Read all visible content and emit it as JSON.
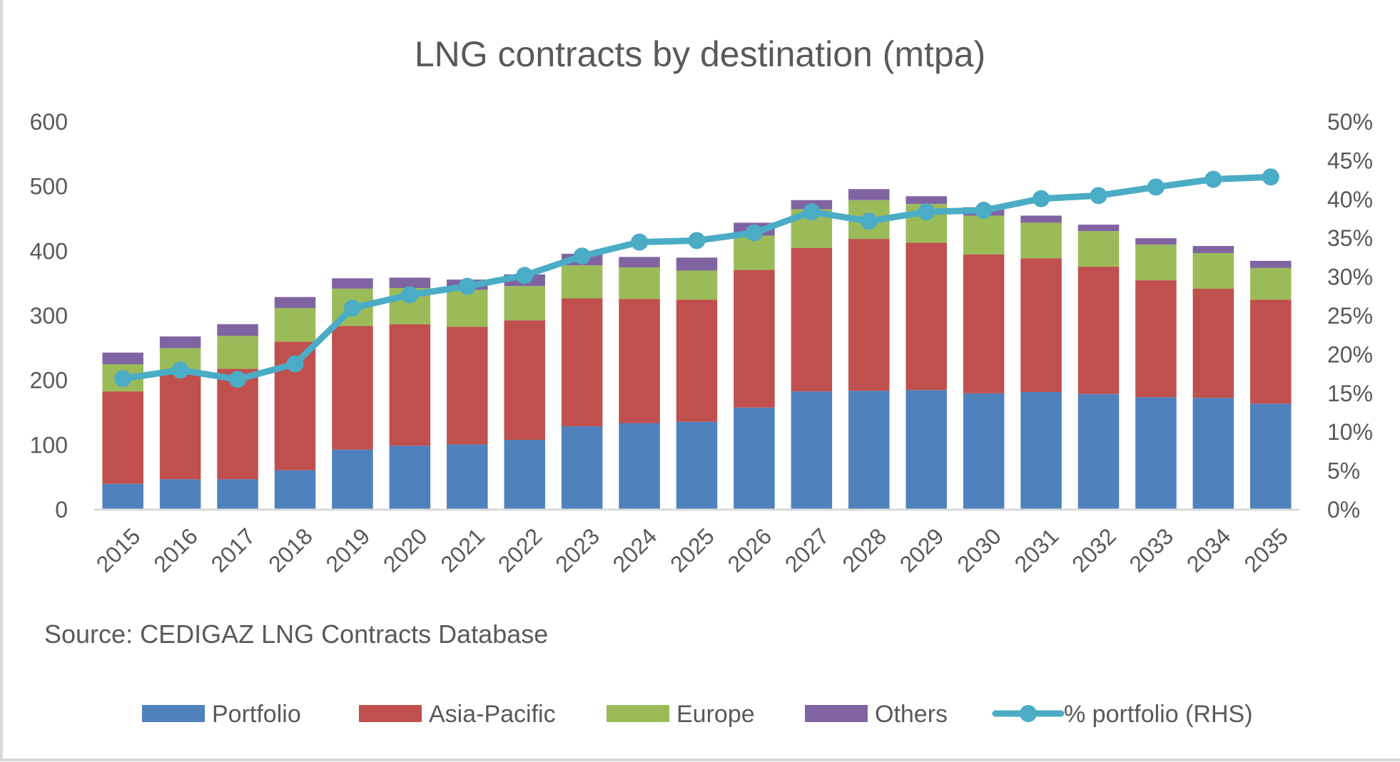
{
  "chart_data": {
    "type": "bar",
    "stacked": true,
    "title": "LNG contracts by destination (mtpa)",
    "source_note": "Source: CEDIGAZ LNG Contracts Database",
    "xlabel": "",
    "ylabel": "",
    "ylabel_right": "",
    "ylim": [
      0,
      600
    ],
    "yticks": [
      "0",
      "100",
      "200",
      "300",
      "400",
      "500",
      "600"
    ],
    "ylim_right": [
      0,
      50
    ],
    "yticks_right": [
      "0%",
      "5%",
      "10%",
      "15%",
      "20%",
      "25%",
      "30%",
      "35%",
      "40%",
      "45%",
      "50%"
    ],
    "grid": false,
    "legend_position": "bottom",
    "categories": [
      "2015",
      "2016",
      "2017",
      "2018",
      "2019",
      "2020",
      "2021",
      "2022",
      "2023",
      "2024",
      "2025",
      "2026",
      "2027",
      "2028",
      "2029",
      "2030",
      "2031",
      "2032",
      "2033",
      "2034",
      "2035"
    ],
    "series": [
      {
        "name": "Portfolio",
        "type": "bar",
        "axis": "left",
        "color": "#4f81bd",
        "values": [
          40,
          47,
          47,
          61,
          93,
          99,
          101,
          108,
          129,
          134,
          136,
          158,
          183,
          184,
          185,
          180,
          182,
          179,
          174,
          173,
          164
        ]
      },
      {
        "name": "Asia-Pacific",
        "type": "bar",
        "axis": "left",
        "color": "#c0504d",
        "values": [
          143,
          163,
          171,
          199,
          191,
          188,
          182,
          185,
          198,
          192,
          189,
          213,
          222,
          235,
          228,
          215,
          207,
          197,
          181,
          169,
          161
        ]
      },
      {
        "name": "Europe",
        "type": "bar",
        "axis": "left",
        "color": "#9bbb59",
        "values": [
          42,
          40,
          51,
          52,
          58,
          56,
          57,
          53,
          51,
          49,
          45,
          53,
          60,
          60,
          60,
          60,
          55,
          55,
          55,
          55,
          49
        ]
      },
      {
        "name": "Others",
        "type": "bar",
        "axis": "left",
        "color": "#8064a2",
        "values": [
          18,
          18,
          18,
          17,
          16,
          16,
          16,
          18,
          18,
          16,
          20,
          20,
          14,
          17,
          12,
          13,
          11,
          10,
          10,
          11,
          11
        ]
      },
      {
        "name": "% portfolio (RHS)",
        "type": "line",
        "axis": "right",
        "color": "#4bacc6",
        "unit": "%",
        "values": [
          16.9,
          18.0,
          16.8,
          18.8,
          26.0,
          27.7,
          28.8,
          30.2,
          32.7,
          34.5,
          34.7,
          35.7,
          38.4,
          37.2,
          38.4,
          38.6,
          40.1,
          40.5,
          41.6,
          42.6,
          42.9
        ]
      }
    ]
  }
}
